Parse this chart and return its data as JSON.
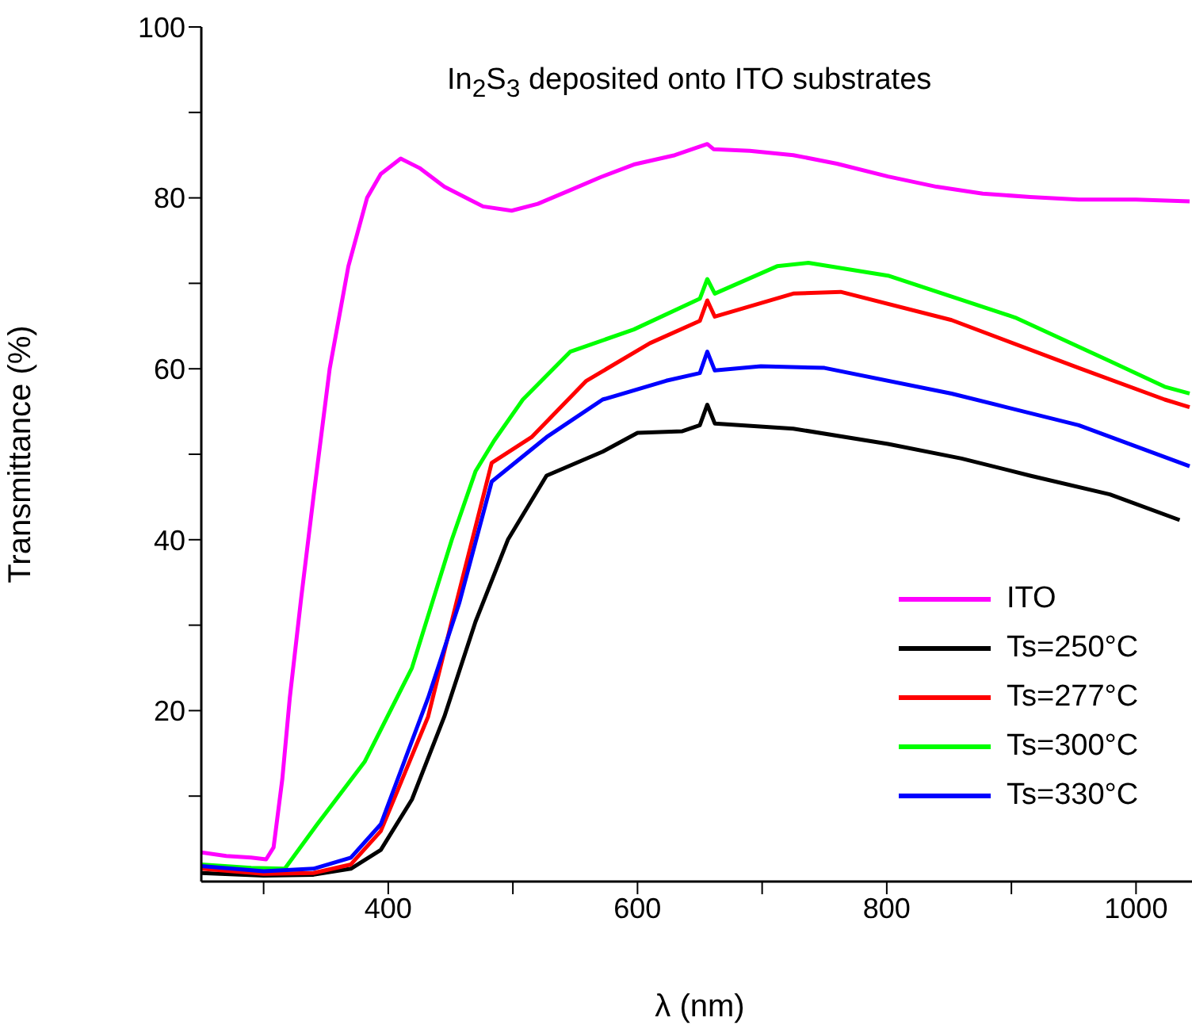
{
  "chart_data": {
    "type": "line",
    "xlabel": "λ (nm)",
    "ylabel": "Transmittance (%)",
    "annotations": [
      "In$_{2}$S$_{3}$ deposited onto ITO substrates"
    ],
    "xlim": [
      250,
      1050
    ],
    "xticks": [
      {
        "value": 300,
        "label": null
      },
      400,
      {
        "value": 500,
        "label": null
      },
      600,
      {
        "value": 700,
        "label": null
      },
      800,
      {
        "value": 900,
        "label": null
      },
      1000
    ],
    "ylim": [
      0,
      100
    ],
    "yticks": [
      {
        "value": 10,
        "label": null
      },
      20,
      {
        "value": 30,
        "label": null
      },
      40,
      {
        "value": 50,
        "label": null
      },
      60,
      {
        "value": 70,
        "label": null
      },
      80,
      {
        "value": 90,
        "label": null
      },
      100
    ],
    "grid": false,
    "legend": "bottom right",
    "marker": "none",
    "line_style": "solid",
    "series": [
      {
        "name": "ITO",
        "color": "#ff00ff",
        "x": [
          250,
          270,
          290,
          302,
          308,
          315,
          321,
          330,
          340,
          353,
          368,
          383,
          394,
          410,
          425,
          445,
          476,
          499,
          520,
          546,
          570,
          597,
          630,
          656,
          661,
          690,
          725,
          760,
          801,
          840,
          877,
          915,
          954,
          1000,
          1043
        ],
        "values": [
          3.4,
          3.0,
          2.8,
          2.6,
          4,
          12,
          21.5,
          33,
          45,
          60,
          72,
          80,
          82.8,
          84.6,
          83.5,
          81.3,
          79,
          78.5,
          79.3,
          80.9,
          82.4,
          83.9,
          85,
          86.3,
          85.7,
          85.5,
          85,
          84,
          82.5,
          81.3,
          80.5,
          80.1,
          79.8,
          79.8,
          79.6
        ]
      },
      {
        "name": "Ts=250°C",
        "color": "#000000",
        "x": [
          250,
          300,
          340,
          370,
          394,
          419,
          445,
          470,
          496,
          527,
          572,
          600,
          636,
          650,
          656,
          662,
          725,
          801,
          860,
          915,
          979,
          1035
        ],
        "values": [
          1,
          0.7,
          0.8,
          1.5,
          3.7,
          9.6,
          19.3,
          30.4,
          40,
          47.5,
          50.3,
          52.5,
          52.7,
          53.4,
          55.8,
          53.6,
          53,
          51.2,
          49.5,
          47.5,
          45.3,
          42.3
        ]
      },
      {
        "name": "Ts=277°C",
        "color": "#ff0000",
        "x": [
          250,
          300,
          340,
          370,
          394,
          432,
          457,
          483,
          515,
          559,
          610,
          650,
          656,
          662,
          725,
          763,
          852,
          954,
          1023,
          1043
        ],
        "values": [
          1.5,
          0.9,
          1,
          2,
          5.9,
          19.3,
          34,
          49,
          52,
          58.6,
          63,
          65.6,
          68,
          66.1,
          68.8,
          69,
          65.7,
          60.1,
          56.4,
          55.5
        ]
      },
      {
        "name": "Ts=300°C",
        "color": "#00ff00",
        "x": [
          250,
          290,
          317,
          343,
          381,
          419,
          451,
          470,
          485,
          508,
          546,
          597,
          650,
          656,
          662,
          712,
          737,
          801,
          903,
          979,
          1023,
          1043
        ],
        "values": [
          2,
          1.6,
          1.5,
          6.7,
          14,
          25,
          40,
          48,
          51.6,
          56.4,
          62,
          64.6,
          68.2,
          70.5,
          68.8,
          72,
          72.4,
          70.9,
          66,
          60.9,
          57.9,
          57.1
        ]
      },
      {
        "name": "Ts=330°C",
        "color": "#0000ff",
        "x": [
          250,
          300,
          340,
          370,
          394,
          432,
          457,
          483,
          527,
          572,
          623,
          650,
          656,
          662,
          699,
          750,
          852,
          954,
          1043
        ],
        "values": [
          1.8,
          1.2,
          1.5,
          2.8,
          6.7,
          21.5,
          32.6,
          46.8,
          52,
          56.4,
          58.6,
          59.5,
          62,
          59.8,
          60.3,
          60.1,
          57.1,
          53.4,
          48.6
        ]
      }
    ]
  }
}
